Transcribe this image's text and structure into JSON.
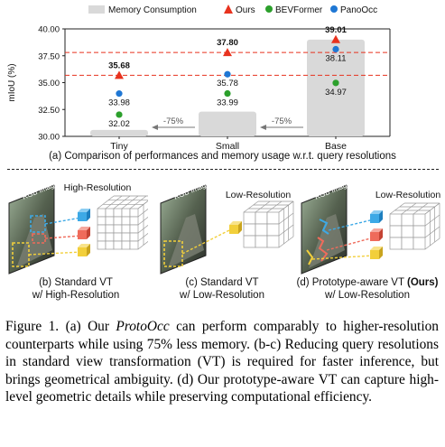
{
  "chart_data": {
    "type": "bar",
    "categories": [
      "Tiny",
      "Small",
      "Base"
    ],
    "ylabel": "mIoU (%)",
    "ylim": [
      30.0,
      40.0
    ],
    "yticks": [
      "30.00",
      "32.50",
      "35.00",
      "37.50",
      "40.00"
    ],
    "legend": [
      "Memory Consumption",
      "Ours",
      "BEVFormer",
      "PanoOcc"
    ],
    "legend_placement": "top",
    "bars": {
      "name": "Memory Consumption",
      "values": [
        30.6,
        32.3,
        39.0
      ],
      "color": "#d9d9d9"
    },
    "series": [
      {
        "name": "Ours",
        "marker": "triangle",
        "color": "#e8321e",
        "values": [
          35.68,
          37.8,
          39.01
        ]
      },
      {
        "name": "BEVFormer",
        "marker": "circle",
        "color": "#2ca02c",
        "values": [
          32.02,
          33.99,
          34.97
        ]
      },
      {
        "name": "PanoOcc",
        "marker": "circle",
        "color": "#1f77d4",
        "values": [
          33.98,
          35.78,
          38.11
        ]
      }
    ],
    "data_labels": {
      "Ours": [
        "35.68",
        "37.80",
        "39.01"
      ],
      "BEVFormer": [
        "32.02",
        "33.99",
        "34.97"
      ],
      "PanoOcc": [
        "33.98",
        "35.78",
        "38.11"
      ]
    },
    "reference_lines": [
      35.68,
      37.8
    ],
    "annotations": [
      "-75%",
      "-75%"
    ],
    "grid": false
  },
  "captions": {
    "a": "(a) Comparison of performances and memory usage w.r.t. query resolutions",
    "b_line1": "(b) Standard VT",
    "b_line2": "w/ High-Resolution",
    "c_line1": "(c) Standard VT",
    "c_line2": "w/ Low-Resolution",
    "d_line1": "(d) Prototype-aware VT",
    "d_bold": "(Ours)",
    "d_line2": "w/ Low-Resolution"
  },
  "panels": {
    "rgb_label": "RGB Image",
    "high_res": "High-Resolution",
    "low_res": "Low-Resolution"
  },
  "figure_caption": {
    "label": "Figure 1.",
    "part1": " (a) Our ",
    "method": "ProtoOcc",
    "part2": " can perform comparably to higher-resolution counterparts while using 75% less memory. (b-c) Reducing query resolutions in standard view transformation (VT) is required for faster inference, but brings geometrical ambiguity. (d) Our prototype-aware VT can capture high-level geometric details while preserving computational efficiency."
  },
  "colors": {
    "bar": "#d9d9d9",
    "ours": "#e8321e",
    "bevformer": "#2ca02c",
    "panoocc": "#1f77d4",
    "query_blue": "#3da9e6",
    "query_red": "#ef6b5b",
    "query_yellow": "#f2cf3b"
  }
}
